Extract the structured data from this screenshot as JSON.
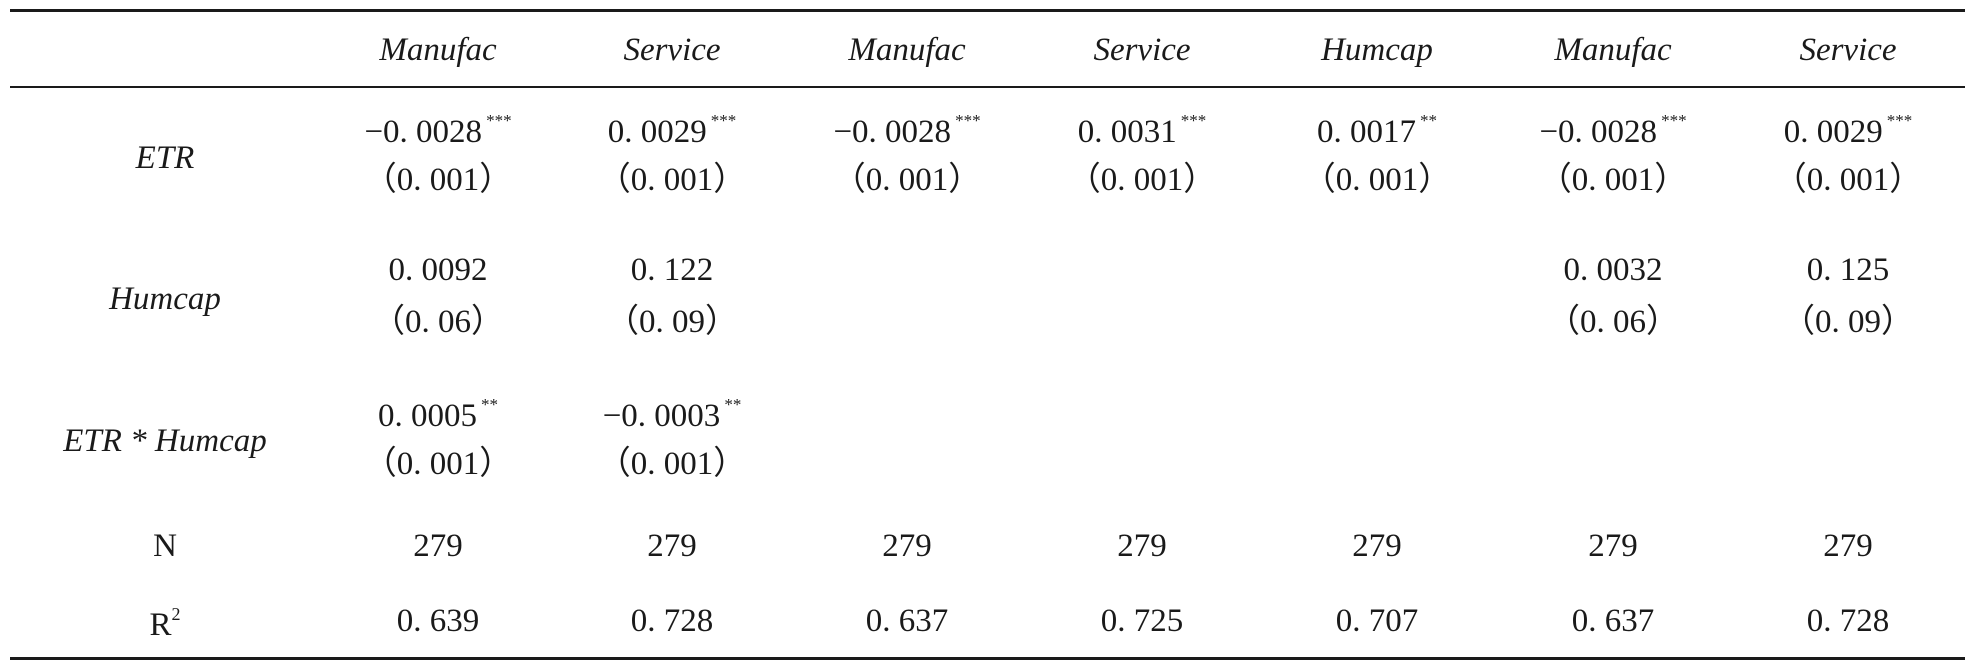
{
  "table": {
    "columns": [
      "Manufac",
      "Service",
      "Manufac",
      "Service",
      "Humcap",
      "Manufac",
      "Service"
    ],
    "rows": [
      {
        "label": "ETR",
        "coef": [
          "−0. 0028",
          "0. 0029",
          "−0. 0028",
          "0. 0031",
          "0. 0017",
          "−0. 0028",
          "0. 0029"
        ],
        "stars": [
          "***",
          "***",
          "***",
          "***",
          "**",
          "***",
          "***"
        ],
        "se": [
          "（0. 001）",
          "（0. 001）",
          "（0. 001）",
          "（0. 001）",
          "（0. 001）",
          "（0. 001）",
          "（0. 001）"
        ]
      },
      {
        "label": "Humcap",
        "coef": [
          "0. 0092",
          "0. 122",
          "",
          "",
          "",
          "0. 0032",
          "0. 125"
        ],
        "stars": [
          "",
          "",
          "",
          "",
          "",
          "",
          ""
        ],
        "se": [
          "（0. 06）",
          "（0. 09）",
          "",
          "",
          "",
          "（0. 06）",
          "（0. 09）"
        ]
      },
      {
        "label": "ETR * Humcap",
        "coef": [
          "0. 0005",
          "−0. 0003",
          "",
          "",
          "",
          "",
          ""
        ],
        "stars": [
          "**",
          "**",
          "",
          "",
          "",
          "",
          ""
        ],
        "se": [
          "（0. 001）",
          "（0. 001）",
          "",
          "",
          "",
          "",
          ""
        ]
      }
    ],
    "n_row": {
      "label": "N",
      "values": [
        "279",
        "279",
        "279",
        "279",
        "279",
        "279",
        "279"
      ]
    },
    "r2_row": {
      "label": "R",
      "label_sup": "2",
      "values": [
        "0. 639",
        "0. 728",
        "0. 637",
        "0. 725",
        "0. 707",
        "0. 637",
        "0. 728"
      ]
    }
  }
}
